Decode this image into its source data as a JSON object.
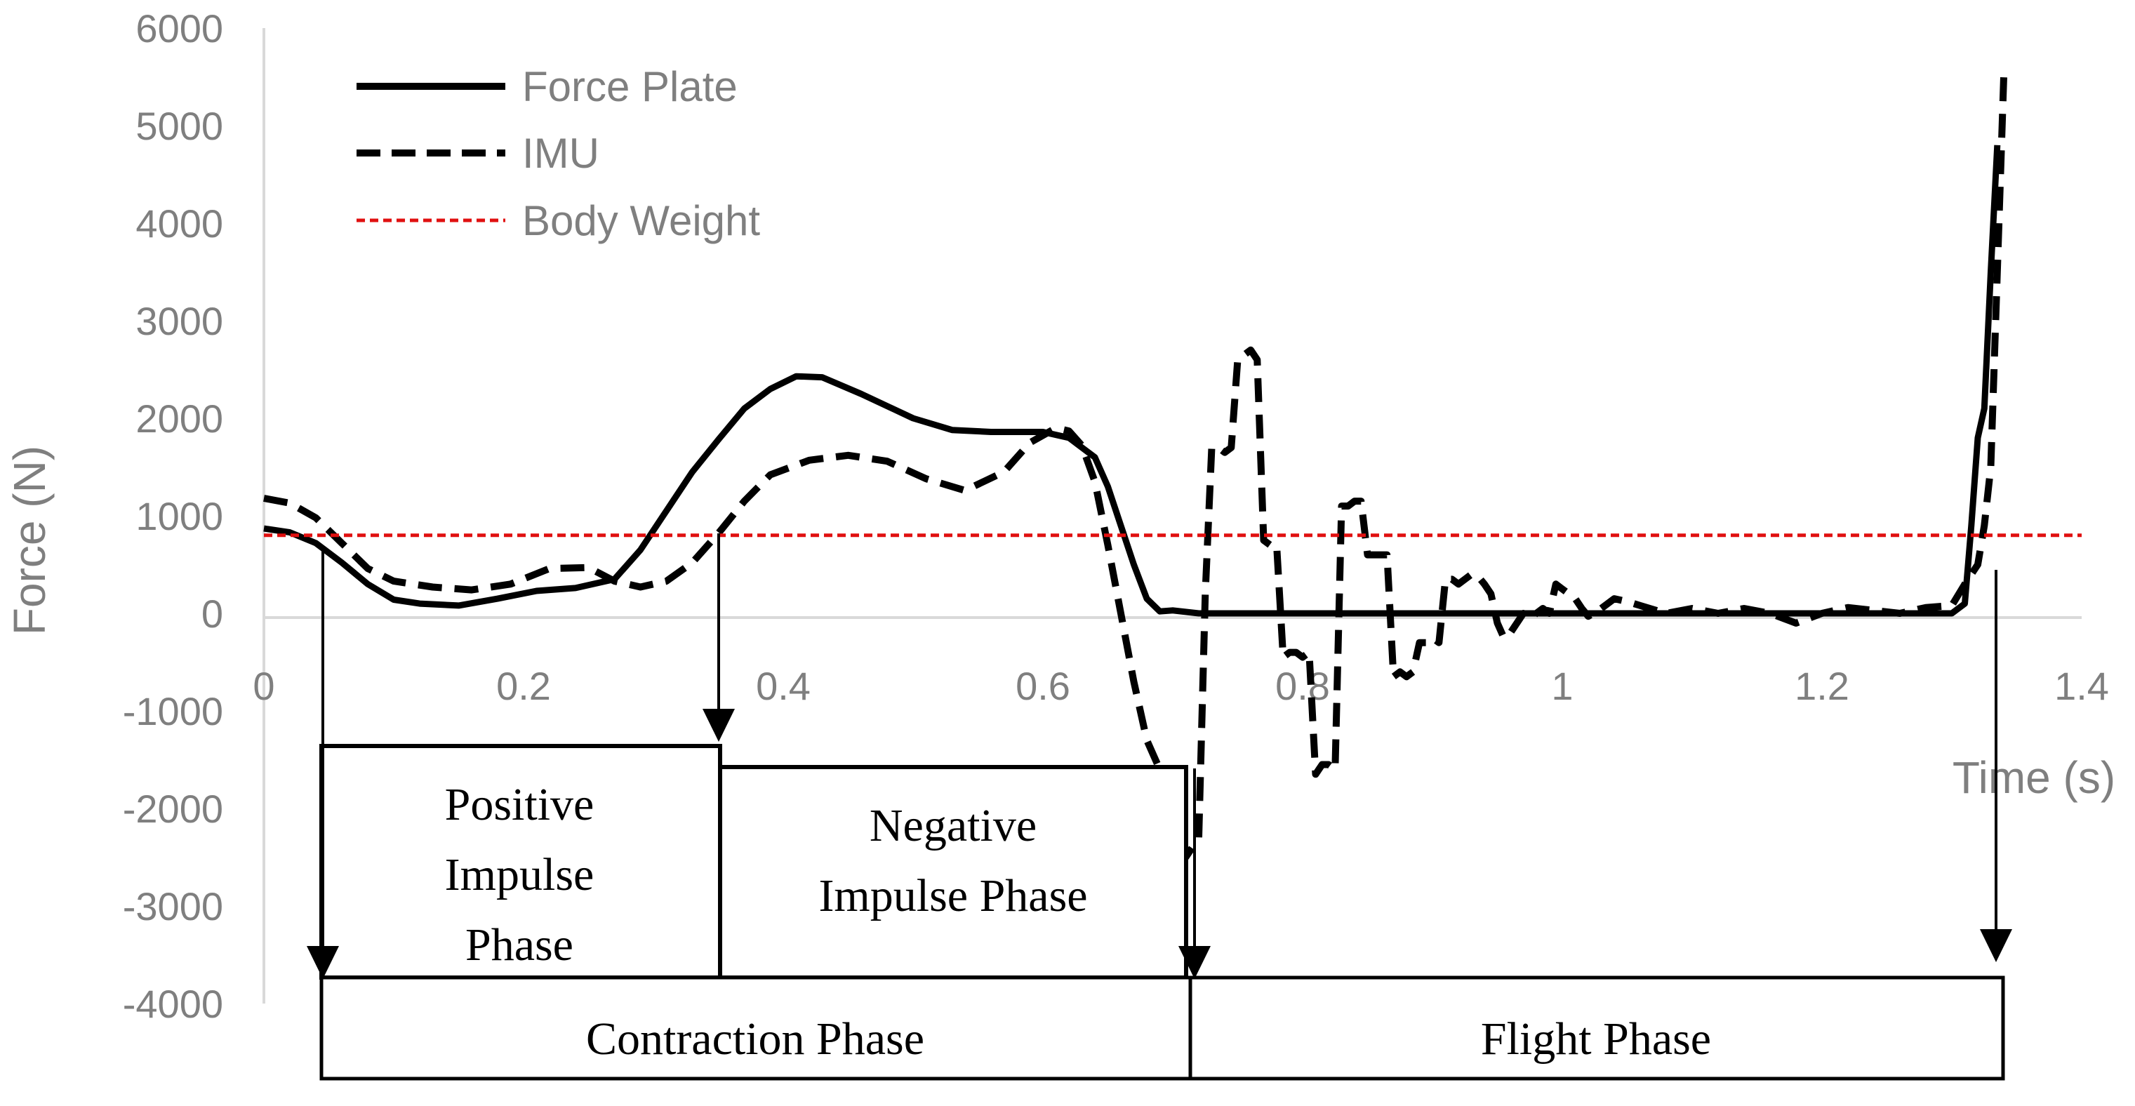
{
  "chart_data": {
    "type": "line",
    "title": "",
    "xlabel": "Time (s)",
    "ylabel": "Force (N)",
    "xlim": [
      0,
      1.4
    ],
    "ylim": [
      -4000,
      6000
    ],
    "x_ticks": [
      "0",
      "0.2",
      "0.4",
      "0.6",
      "0.8",
      "1",
      "1.2",
      "1.4"
    ],
    "y_ticks": [
      "6000",
      "5000",
      "4000",
      "3000",
      "2000",
      "1000",
      "0",
      "-1000",
      "-2000",
      "-3000",
      "-4000"
    ],
    "legend": [
      "Force Plate",
      "IMU",
      "Body Weight"
    ],
    "colors": {
      "force_plate": "#000000",
      "imu": "#000000",
      "body_weight": "#e01010",
      "axis": "#d9d9d9"
    },
    "series": [
      {
        "name": "Force Plate",
        "style": "solid",
        "x": [
          0,
          0.02,
          0.04,
          0.06,
          0.08,
          0.1,
          0.12,
          0.15,
          0.18,
          0.21,
          0.24,
          0.27,
          0.29,
          0.31,
          0.33,
          0.35,
          0.37,
          0.39,
          0.41,
          0.43,
          0.46,
          0.5,
          0.53,
          0.56,
          0.6,
          0.62,
          0.64,
          0.65,
          0.66,
          0.67,
          0.68,
          0.69,
          0.7,
          0.72,
          0.75,
          0.8,
          0.9,
          1.0,
          1.1,
          1.2,
          1.3,
          1.31,
          1.315,
          1.32,
          1.325,
          1.33,
          1.335
        ],
        "y": [
          870,
          830,
          720,
          520,
          300,
          140,
          100,
          80,
          150,
          230,
          260,
          350,
          650,
          1050,
          1450,
          1780,
          2100,
          2300,
          2430,
          2420,
          2250,
          2000,
          1880,
          1860,
          1860,
          1800,
          1600,
          1300,
          900,
          500,
          150,
          20,
          30,
          0,
          0,
          0,
          0,
          0,
          0,
          0,
          0,
          100,
          900,
          1800,
          2100,
          3500,
          4800
        ]
      },
      {
        "name": "IMU",
        "style": "dashed",
        "x": [
          0,
          0.02,
          0.04,
          0.06,
          0.08,
          0.1,
          0.13,
          0.16,
          0.19,
          0.22,
          0.25,
          0.27,
          0.29,
          0.31,
          0.33,
          0.35,
          0.37,
          0.39,
          0.42,
          0.45,
          0.48,
          0.51,
          0.54,
          0.57,
          0.59,
          0.61,
          0.62,
          0.63,
          0.64,
          0.65,
          0.66,
          0.67,
          0.68,
          0.69,
          0.7,
          0.71,
          0.72,
          0.725,
          0.73,
          0.735,
          0.74,
          0.745,
          0.75,
          0.755,
          0.76,
          0.765,
          0.77,
          0.775,
          0.78,
          0.785,
          0.79,
          0.795,
          0.8,
          0.805,
          0.81,
          0.815,
          0.82,
          0.825,
          0.83,
          0.835,
          0.84,
          0.845,
          0.85,
          0.855,
          0.86,
          0.865,
          0.87,
          0.875,
          0.88,
          0.885,
          0.89,
          0.895,
          0.9,
          0.905,
          0.91,
          0.915,
          0.92,
          0.925,
          0.93,
          0.935,
          0.94,
          0.945,
          0.95,
          0.955,
          0.96,
          0.965,
          0.97,
          0.975,
          0.98,
          0.985,
          0.99,
          0.995,
          1.0,
          1.005,
          1.01,
          1.015,
          1.02,
          1.03,
          1.04,
          1.05,
          1.06,
          1.08,
          1.1,
          1.12,
          1.14,
          1.16,
          1.18,
          1.2,
          1.22,
          1.24,
          1.26,
          1.28,
          1.3,
          1.31,
          1.32,
          1.325,
          1.33,
          1.335,
          1.34
        ],
        "y": [
          1180,
          1130,
          980,
          720,
          460,
          330,
          270,
          240,
          300,
          460,
          470,
          330,
          270,
          330,
          520,
          820,
          1150,
          1420,
          1570,
          1620,
          1560,
          1380,
          1260,
          1450,
          1750,
          1900,
          1870,
          1720,
          1350,
          700,
          0,
          -700,
          -1300,
          -1600,
          -1900,
          -2500,
          -2300,
          200,
          1700,
          1700,
          1650,
          1700,
          2600,
          2650,
          2700,
          2600,
          750,
          700,
          700,
          -450,
          -400,
          -400,
          -450,
          -400,
          -1650,
          -1550,
          -1550,
          -1600,
          1100,
          1100,
          1150,
          1150,
          600,
          600,
          600,
          600,
          -650,
          -600,
          -650,
          -600,
          -300,
          -300,
          -250,
          -300,
          350,
          350,
          300,
          350,
          400,
          380,
          300,
          200,
          -100,
          -250,
          -200,
          -100,
          0,
          -50,
          0,
          50,
          0,
          300,
          250,
          200,
          150,
          50,
          -30,
          50,
          150,
          120,
          80,
          0,
          50,
          0,
          50,
          0,
          -100,
          0,
          60,
          30,
          0,
          60,
          80,
          300,
          500,
          900,
          1500,
          3500,
          5500
        ]
      },
      {
        "name": "Body Weight",
        "style": "dotted",
        "x": [
          0,
          1.4
        ],
        "y": [
          800,
          800
        ]
      }
    ]
  },
  "annotations": {
    "positive_impulse": [
      "Positive",
      "Impulse",
      "Phase"
    ],
    "negative_impulse": [
      "Negative",
      "Impulse Phase"
    ],
    "contraction": "Contraction Phase",
    "flight": "Flight Phase"
  }
}
